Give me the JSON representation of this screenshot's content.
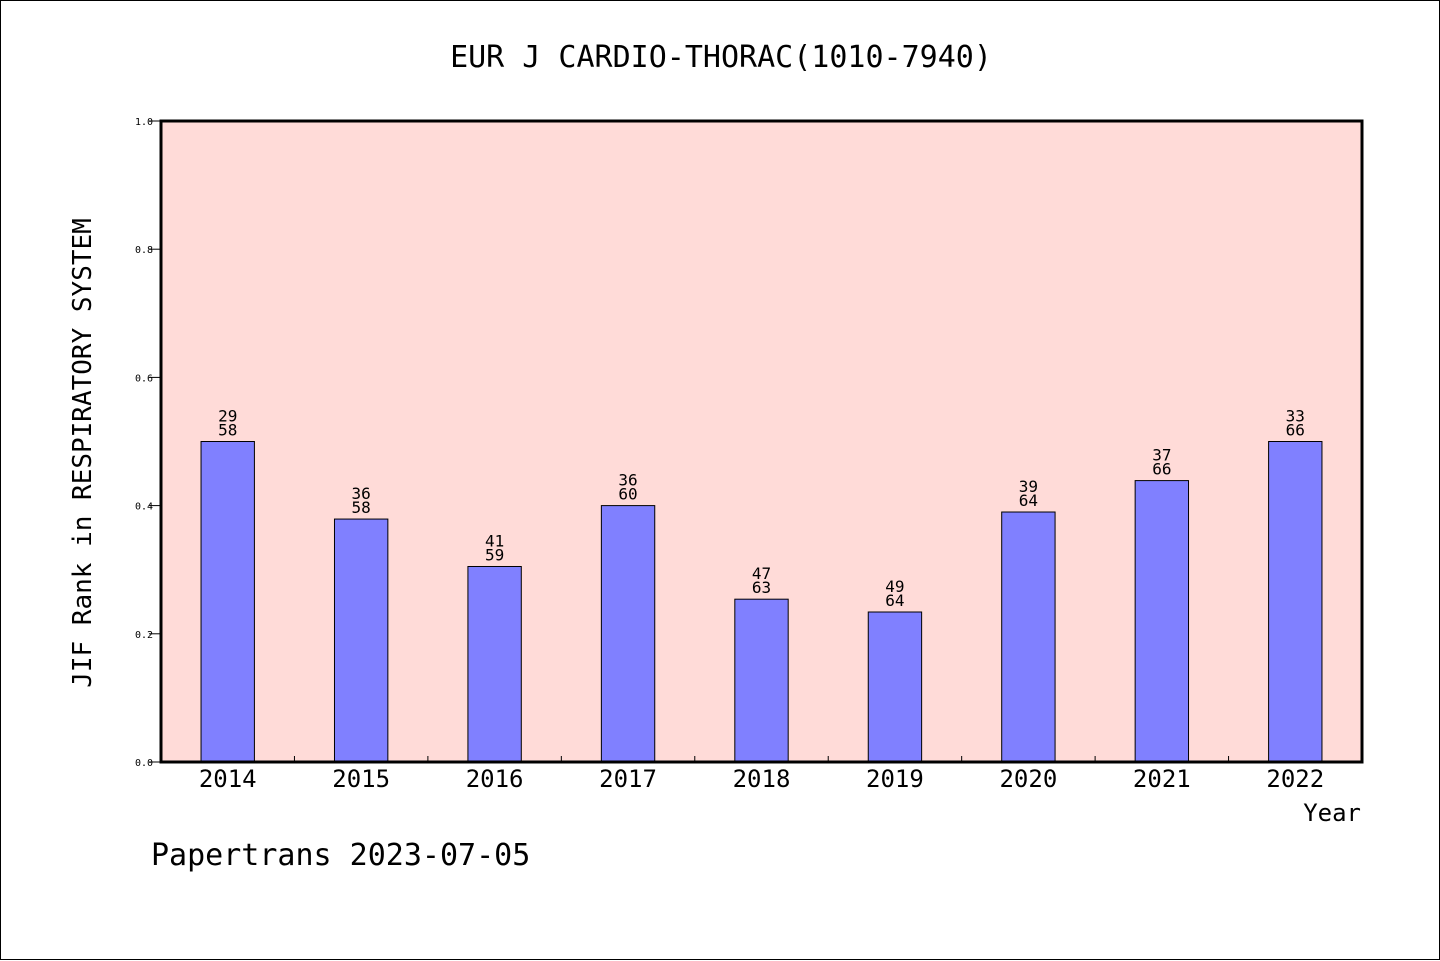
{
  "chart_data": {
    "type": "bar",
    "title": "EUR J CARDIO-THORAC(1010-7940)",
    "xlabel": "Year",
    "ylabel": "JIF Rank in RESPIRATORY SYSTEM",
    "ylim": [
      0.0,
      1.0
    ],
    "yticks": [
      "0.0",
      "0.2",
      "0.4",
      "0.6",
      "0.8",
      "1.0"
    ],
    "categories": [
      "2014",
      "2015",
      "2016",
      "2017",
      "2018",
      "2019",
      "2020",
      "2021",
      "2022"
    ],
    "values": [
      0.5,
      0.379,
      0.305,
      0.4,
      0.254,
      0.234,
      0.39,
      0.439,
      0.5
    ],
    "rank_labels": [
      {
        "rank": "29",
        "total": "58"
      },
      {
        "rank": "36",
        "total": "58"
      },
      {
        "rank": "41",
        "total": "59"
      },
      {
        "rank": "36",
        "total": "60"
      },
      {
        "rank": "47",
        "total": "63"
      },
      {
        "rank": "49",
        "total": "64"
      },
      {
        "rank": "39",
        "total": "64"
      },
      {
        "rank": "37",
        "total": "66"
      },
      {
        "rank": "33",
        "total": "66"
      }
    ],
    "grid": false,
    "colors": {
      "plot_background": "#ffdbd8",
      "bar_fill": "#8080ff",
      "bar_stroke": "#000000"
    }
  },
  "footer": "Papertrans 2023-07-05"
}
